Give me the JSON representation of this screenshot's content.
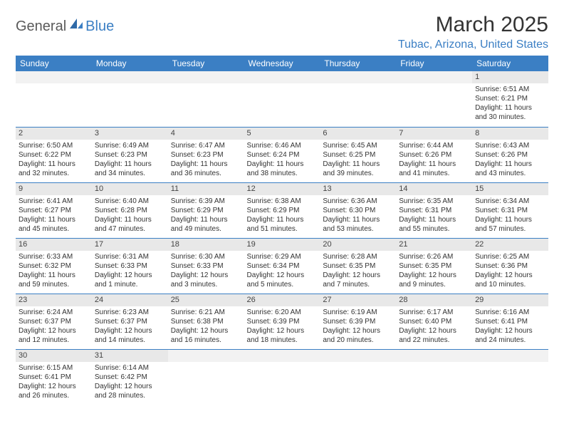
{
  "brand": {
    "part1": "General",
    "part2": "Blue"
  },
  "title": "March 2025",
  "location": "Tubac, Arizona, United States",
  "weekdays": [
    "Sunday",
    "Monday",
    "Tuesday",
    "Wednesday",
    "Thursday",
    "Friday",
    "Saturday"
  ],
  "colors": {
    "accent": "#3b7fc4",
    "header_bg": "#3b7fc4",
    "daynum_bg": "#e8e8e8",
    "border": "#3b7fc4",
    "text": "#333333"
  },
  "calendar": {
    "type": "table",
    "rows": 6,
    "cols": 7,
    "cells": [
      [
        {
          "day": "",
          "sunrise": "",
          "sunset": "",
          "daylight": ""
        },
        {
          "day": "",
          "sunrise": "",
          "sunset": "",
          "daylight": ""
        },
        {
          "day": "",
          "sunrise": "",
          "sunset": "",
          "daylight": ""
        },
        {
          "day": "",
          "sunrise": "",
          "sunset": "",
          "daylight": ""
        },
        {
          "day": "",
          "sunrise": "",
          "sunset": "",
          "daylight": ""
        },
        {
          "day": "",
          "sunrise": "",
          "sunset": "",
          "daylight": ""
        },
        {
          "day": "1",
          "sunrise": "Sunrise: 6:51 AM",
          "sunset": "Sunset: 6:21 PM",
          "daylight": "Daylight: 11 hours and 30 minutes."
        }
      ],
      [
        {
          "day": "2",
          "sunrise": "Sunrise: 6:50 AM",
          "sunset": "Sunset: 6:22 PM",
          "daylight": "Daylight: 11 hours and 32 minutes."
        },
        {
          "day": "3",
          "sunrise": "Sunrise: 6:49 AM",
          "sunset": "Sunset: 6:23 PM",
          "daylight": "Daylight: 11 hours and 34 minutes."
        },
        {
          "day": "4",
          "sunrise": "Sunrise: 6:47 AM",
          "sunset": "Sunset: 6:23 PM",
          "daylight": "Daylight: 11 hours and 36 minutes."
        },
        {
          "day": "5",
          "sunrise": "Sunrise: 6:46 AM",
          "sunset": "Sunset: 6:24 PM",
          "daylight": "Daylight: 11 hours and 38 minutes."
        },
        {
          "day": "6",
          "sunrise": "Sunrise: 6:45 AM",
          "sunset": "Sunset: 6:25 PM",
          "daylight": "Daylight: 11 hours and 39 minutes."
        },
        {
          "day": "7",
          "sunrise": "Sunrise: 6:44 AM",
          "sunset": "Sunset: 6:26 PM",
          "daylight": "Daylight: 11 hours and 41 minutes."
        },
        {
          "day": "8",
          "sunrise": "Sunrise: 6:43 AM",
          "sunset": "Sunset: 6:26 PM",
          "daylight": "Daylight: 11 hours and 43 minutes."
        }
      ],
      [
        {
          "day": "9",
          "sunrise": "Sunrise: 6:41 AM",
          "sunset": "Sunset: 6:27 PM",
          "daylight": "Daylight: 11 hours and 45 minutes."
        },
        {
          "day": "10",
          "sunrise": "Sunrise: 6:40 AM",
          "sunset": "Sunset: 6:28 PM",
          "daylight": "Daylight: 11 hours and 47 minutes."
        },
        {
          "day": "11",
          "sunrise": "Sunrise: 6:39 AM",
          "sunset": "Sunset: 6:29 PM",
          "daylight": "Daylight: 11 hours and 49 minutes."
        },
        {
          "day": "12",
          "sunrise": "Sunrise: 6:38 AM",
          "sunset": "Sunset: 6:29 PM",
          "daylight": "Daylight: 11 hours and 51 minutes."
        },
        {
          "day": "13",
          "sunrise": "Sunrise: 6:36 AM",
          "sunset": "Sunset: 6:30 PM",
          "daylight": "Daylight: 11 hours and 53 minutes."
        },
        {
          "day": "14",
          "sunrise": "Sunrise: 6:35 AM",
          "sunset": "Sunset: 6:31 PM",
          "daylight": "Daylight: 11 hours and 55 minutes."
        },
        {
          "day": "15",
          "sunrise": "Sunrise: 6:34 AM",
          "sunset": "Sunset: 6:31 PM",
          "daylight": "Daylight: 11 hours and 57 minutes."
        }
      ],
      [
        {
          "day": "16",
          "sunrise": "Sunrise: 6:33 AM",
          "sunset": "Sunset: 6:32 PM",
          "daylight": "Daylight: 11 hours and 59 minutes."
        },
        {
          "day": "17",
          "sunrise": "Sunrise: 6:31 AM",
          "sunset": "Sunset: 6:33 PM",
          "daylight": "Daylight: 12 hours and 1 minute."
        },
        {
          "day": "18",
          "sunrise": "Sunrise: 6:30 AM",
          "sunset": "Sunset: 6:33 PM",
          "daylight": "Daylight: 12 hours and 3 minutes."
        },
        {
          "day": "19",
          "sunrise": "Sunrise: 6:29 AM",
          "sunset": "Sunset: 6:34 PM",
          "daylight": "Daylight: 12 hours and 5 minutes."
        },
        {
          "day": "20",
          "sunrise": "Sunrise: 6:28 AM",
          "sunset": "Sunset: 6:35 PM",
          "daylight": "Daylight: 12 hours and 7 minutes."
        },
        {
          "day": "21",
          "sunrise": "Sunrise: 6:26 AM",
          "sunset": "Sunset: 6:35 PM",
          "daylight": "Daylight: 12 hours and 9 minutes."
        },
        {
          "day": "22",
          "sunrise": "Sunrise: 6:25 AM",
          "sunset": "Sunset: 6:36 PM",
          "daylight": "Daylight: 12 hours and 10 minutes."
        }
      ],
      [
        {
          "day": "23",
          "sunrise": "Sunrise: 6:24 AM",
          "sunset": "Sunset: 6:37 PM",
          "daylight": "Daylight: 12 hours and 12 minutes."
        },
        {
          "day": "24",
          "sunrise": "Sunrise: 6:23 AM",
          "sunset": "Sunset: 6:37 PM",
          "daylight": "Daylight: 12 hours and 14 minutes."
        },
        {
          "day": "25",
          "sunrise": "Sunrise: 6:21 AM",
          "sunset": "Sunset: 6:38 PM",
          "daylight": "Daylight: 12 hours and 16 minutes."
        },
        {
          "day": "26",
          "sunrise": "Sunrise: 6:20 AM",
          "sunset": "Sunset: 6:39 PM",
          "daylight": "Daylight: 12 hours and 18 minutes."
        },
        {
          "day": "27",
          "sunrise": "Sunrise: 6:19 AM",
          "sunset": "Sunset: 6:39 PM",
          "daylight": "Daylight: 12 hours and 20 minutes."
        },
        {
          "day": "28",
          "sunrise": "Sunrise: 6:17 AM",
          "sunset": "Sunset: 6:40 PM",
          "daylight": "Daylight: 12 hours and 22 minutes."
        },
        {
          "day": "29",
          "sunrise": "Sunrise: 6:16 AM",
          "sunset": "Sunset: 6:41 PM",
          "daylight": "Daylight: 12 hours and 24 minutes."
        }
      ],
      [
        {
          "day": "30",
          "sunrise": "Sunrise: 6:15 AM",
          "sunset": "Sunset: 6:41 PM",
          "daylight": "Daylight: 12 hours and 26 minutes."
        },
        {
          "day": "31",
          "sunrise": "Sunrise: 6:14 AM",
          "sunset": "Sunset: 6:42 PM",
          "daylight": "Daylight: 12 hours and 28 minutes."
        },
        {
          "day": "",
          "sunrise": "",
          "sunset": "",
          "daylight": ""
        },
        {
          "day": "",
          "sunrise": "",
          "sunset": "",
          "daylight": ""
        },
        {
          "day": "",
          "sunrise": "",
          "sunset": "",
          "daylight": ""
        },
        {
          "day": "",
          "sunrise": "",
          "sunset": "",
          "daylight": ""
        },
        {
          "day": "",
          "sunrise": "",
          "sunset": "",
          "daylight": ""
        }
      ]
    ]
  }
}
